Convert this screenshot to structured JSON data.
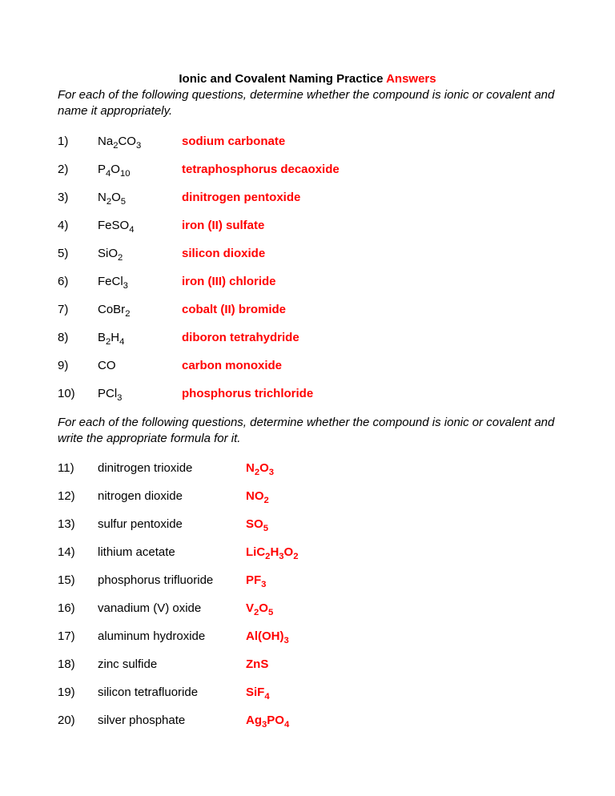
{
  "title_main": "Ionic and Covalent Naming Practice ",
  "title_answers": "Answers",
  "instructions1": "For each of the following questions, determine whether the compound is ionic or covalent and name it appropriately.",
  "instructions2": "For each of the following questions, determine whether the compound is ionic or covalent and write the appropriate formula for it.",
  "colors": {
    "answer": "#ff0000",
    "text": "#000000",
    "background": "#ffffff"
  },
  "fontsize_body": 15,
  "section1": [
    {
      "num": "1)",
      "formula_html": "Na<sub>2</sub>CO<sub>3</sub>",
      "formula_plain": "Na2CO3",
      "answer": "sodium carbonate"
    },
    {
      "num": "2)",
      "formula_html": "P<sub>4</sub>O<sub>10</sub>",
      "formula_plain": "P4O10",
      "answer": "tetraphosphorus decaoxide"
    },
    {
      "num": "3)",
      "formula_html": "N<sub>2</sub>O<sub>5</sub>",
      "formula_plain": "N2O5",
      "answer": "dinitrogen pentoxide"
    },
    {
      "num": "4)",
      "formula_html": "FeSO<sub>4</sub>",
      "formula_plain": "FeSO4",
      "answer": "iron (II) sulfate"
    },
    {
      "num": "5)",
      "formula_html": "SiO<sub>2</sub>",
      "formula_plain": "SiO2",
      "answer": "silicon dioxide"
    },
    {
      "num": "6)",
      "formula_html": "FeCl<sub>3</sub>",
      "formula_plain": "FeCl3",
      "answer": "iron (III) chloride"
    },
    {
      "num": "7)",
      "formula_html": "CoBr<sub>2</sub>",
      "formula_plain": "CoBr2",
      "answer": "cobalt (II) bromide"
    },
    {
      "num": "8)",
      "formula_html": "B<sub>2</sub>H<sub>4</sub>",
      "formula_plain": "B2H4",
      "answer": "diboron tetrahydride"
    },
    {
      "num": "9)",
      "formula_html": "CO",
      "formula_plain": "CO",
      "answer": "carbon monoxide"
    },
    {
      "num": "10)",
      "formula_html": "PCl<sub>3</sub>",
      "formula_plain": "PCl3",
      "answer": "phosphorus trichloride"
    }
  ],
  "section2": [
    {
      "num": "11)",
      "name": "dinitrogen trioxide",
      "answer_html": "N<sub>2</sub>O<sub>3</sub>",
      "answer_plain": "N2O3"
    },
    {
      "num": "12)",
      "name": "nitrogen dioxide",
      "answer_html": "NO<sub>2</sub>",
      "answer_plain": "NO2"
    },
    {
      "num": "13)",
      "name": "sulfur pentoxide",
      "answer_html": "SO<sub>5</sub>",
      "answer_plain": "SO5"
    },
    {
      "num": "14)",
      "name": "lithium acetate",
      "answer_html": "LiC<sub>2</sub>H<sub>3</sub>O<sub>2</sub>",
      "answer_plain": "LiC2H3O2"
    },
    {
      "num": "15)",
      "name": "phosphorus trifluoride",
      "answer_html": "PF<sub>3</sub>",
      "answer_plain": "PF3"
    },
    {
      "num": "16)",
      "name": "vanadium (V) oxide",
      "answer_html": "V<sub>2</sub>O<sub>5</sub>",
      "answer_plain": "V2O5"
    },
    {
      "num": "17)",
      "name": "aluminum hydroxide",
      "answer_html": "Al(OH)<sub>3</sub>",
      "answer_plain": "Al(OH)3"
    },
    {
      "num": "18)",
      "name": "zinc sulfide",
      "answer_html": "ZnS",
      "answer_plain": "ZnS"
    },
    {
      "num": "19)",
      "name": "silicon tetrafluoride",
      "answer_html": "SiF<sub>4</sub>",
      "answer_plain": "SiF4"
    },
    {
      "num": "20)",
      "name": "silver phosphate",
      "answer_html": "Ag<sub>3</sub>PO<sub>4</sub>",
      "answer_plain": "Ag3PO4"
    }
  ]
}
